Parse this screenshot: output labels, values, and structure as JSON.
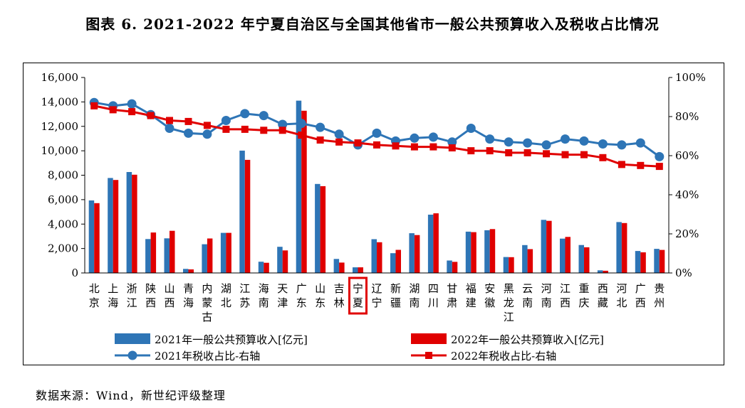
{
  "title": "图表 6. 2021-2022 年宁夏自治区与全国其他省市一般公共预算收入及税收占比情况",
  "source": "数据来源：Wind，新世纪评级整理",
  "chart_data": {
    "type": "bar",
    "categories": [
      "北京",
      "上海",
      "浙江",
      "陕西",
      "山西",
      "青海",
      "内蒙古",
      "湖北",
      "江苏",
      "海南",
      "天津",
      "广东",
      "山东",
      "吉林",
      "宁夏",
      "辽宁",
      "新疆",
      "湖南",
      "四川",
      "甘肃",
      "福建",
      "安徽",
      "黑龙江",
      "云南",
      "河南",
      "江西",
      "重庆",
      "西藏",
      "河北",
      "广西",
      "贵州"
    ],
    "highlight_category": "宁夏",
    "left_axis": {
      "ylim": [
        0,
        16000
      ],
      "ticks": [
        "0",
        "2,000",
        "4,000",
        "6,000",
        "8,000",
        "10,000",
        "12,000",
        "14,000",
        "16,000"
      ]
    },
    "right_axis": {
      "ylim": [
        0,
        100
      ],
      "ticks": [
        "0%",
        "20%",
        "40%",
        "60%",
        "80%",
        "100%"
      ]
    },
    "series": [
      {
        "name": "2021年一般公共预算收入[亿元]",
        "type": "bar",
        "axis": "left",
        "color": "#2E75B6",
        "values": [
          5932,
          7771,
          8263,
          2775,
          2835,
          329,
          2350,
          3283,
          10015,
          921,
          2141,
          14105,
          7284,
          1144,
          460,
          2765,
          1619,
          3251,
          4773,
          1016,
          3383,
          3498,
          1301,
          2278,
          4347,
          2812,
          2285,
          215,
          4167,
          1800,
          1970
        ]
      },
      {
        "name": "2022年一般公共预算收入[亿元]",
        "type": "bar",
        "axis": "left",
        "color": "#E00000",
        "values": [
          5714,
          7608,
          8039,
          3311,
          3453,
          290,
          2824,
          3281,
          9259,
          832,
          1846,
          13280,
          7104,
          851,
          461,
          2512,
          1889,
          3102,
          4882,
          907,
          3340,
          3589,
          1290,
          1949,
          4262,
          2949,
          2103,
          180,
          4084,
          1687,
          1886
        ]
      },
      {
        "name": "2021年税收占比-右轴",
        "type": "line",
        "axis": "right",
        "color": "#2E75B6",
        "marker": "circle",
        "values": [
          87.2,
          85.5,
          86.5,
          81,
          74,
          71.5,
          71,
          78,
          81.5,
          80.5,
          76,
          76.5,
          74.5,
          71,
          65.5,
          71.5,
          67.5,
          69,
          69.5,
          67,
          74,
          68.5,
          67,
          66.5,
          65.5,
          68.5,
          67.5,
          66,
          65.5,
          66.5,
          59.5
        ]
      },
      {
        "name": "2022年税收占比-右轴",
        "type": "line",
        "axis": "right",
        "color": "#E00000",
        "marker": "square",
        "values": [
          85.5,
          83.5,
          82.5,
          80.5,
          78,
          77.5,
          75.5,
          73.5,
          73.5,
          73,
          73,
          70.5,
          68,
          67,
          66.5,
          65.5,
          65,
          64.5,
          64.5,
          64,
          62.5,
          62.5,
          61.5,
          61.5,
          61,
          60.5,
          60.5,
          59,
          55.5,
          55,
          54.5
        ]
      }
    ],
    "legend_position": "bottom",
    "grid": false
  }
}
